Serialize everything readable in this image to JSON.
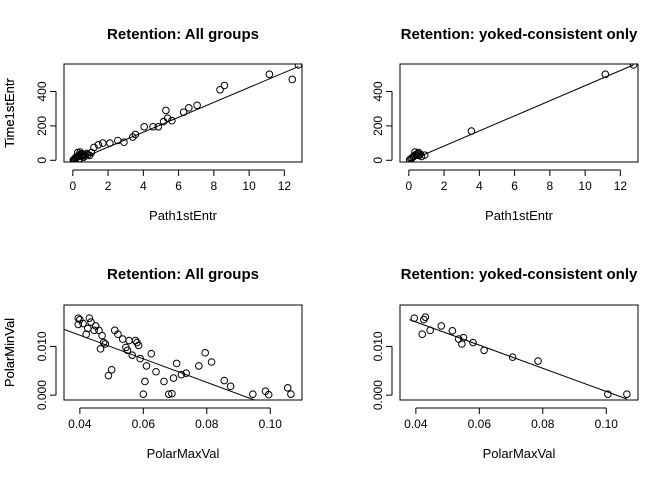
{
  "chart_data": [
    {
      "type": "scatter",
      "title": "Retention: All groups",
      "xlabel": "Path1stEntr",
      "ylabel": "Time1stEntr",
      "xlim": [
        -0.5,
        13.0
      ],
      "ylim": [
        -10,
        560
      ],
      "xticks": [
        0,
        2,
        4,
        6,
        8,
        10,
        12
      ],
      "xtick_labels": [
        "0",
        "2",
        "4",
        "6",
        "8",
        "10",
        "12"
      ],
      "yticks": [
        0,
        200,
        400
      ],
      "ytick_labels": [
        "0",
        "200",
        "400"
      ],
      "x": [
        0.03,
        0.08,
        0.12,
        0.18,
        0.22,
        0.27,
        0.31,
        0.35,
        0.41,
        0.47,
        0.52,
        0.58,
        0.63,
        0.7,
        0.78,
        0.85,
        0.95,
        1.05,
        0.15,
        0.25,
        0.38,
        0.5,
        0.62,
        0.42,
        0.28,
        1.2,
        1.45,
        1.7,
        2.1,
        2.55,
        2.9,
        3.4,
        3.55,
        4.05,
        4.55,
        4.85,
        5.15,
        5.28,
        5.38,
        5.62,
        6.28,
        6.58,
        7.05,
        8.35,
        8.6,
        11.15,
        12.45,
        12.8
      ],
      "y": [
        2,
        5,
        8,
        12,
        18,
        22,
        25,
        30,
        34,
        38,
        30,
        28,
        35,
        26,
        40,
        32,
        28,
        45,
        15,
        20,
        10,
        22,
        18,
        48,
        45,
        75,
        90,
        100,
        100,
        115,
        105,
        135,
        150,
        195,
        195,
        195,
        225,
        290,
        245,
        230,
        280,
        305,
        320,
        410,
        435,
        500,
        470,
        555
      ],
      "fit_line": {
        "x": [
          0,
          12.8
        ],
        "y": [
          -10,
          545
        ]
      },
      "grid": false,
      "legend": "none"
    },
    {
      "type": "scatter",
      "title": "Retention: yoked-consistent only",
      "xlabel": "Path1stEntr",
      "ylabel": "Time1stEntr",
      "xlim": [
        -0.5,
        13.0
      ],
      "ylim": [
        -10,
        560
      ],
      "xticks": [
        0,
        2,
        4,
        6,
        8,
        10,
        12
      ],
      "xtick_labels": [
        "0",
        "2",
        "4",
        "6",
        "8",
        "10",
        "12"
      ],
      "yticks": [
        0,
        200,
        400
      ],
      "ytick_labels": [
        "0",
        "200",
        "400"
      ],
      "x": [
        0.05,
        0.12,
        0.18,
        0.25,
        0.3,
        0.38,
        0.45,
        0.5,
        0.58,
        0.65,
        0.72,
        0.9,
        0.35,
        0.55,
        3.55,
        11.15,
        12.75
      ],
      "y": [
        3,
        8,
        14,
        20,
        25,
        32,
        30,
        38,
        28,
        35,
        22,
        30,
        48,
        45,
        170,
        500,
        555
      ],
      "fit_line": {
        "x": [
          0,
          12.75
        ],
        "y": [
          -5,
          555
        ]
      },
      "grid": false,
      "legend": "none"
    },
    {
      "type": "scatter",
      "title": "Retention: All groups",
      "xlabel": "PolarMaxVal",
      "ylabel": "PolarMinVal",
      "xlim": [
        0.035,
        0.11
      ],
      "ylim": [
        -0.001,
        0.0185
      ],
      "xticks": [
        0.04,
        0.06,
        0.08,
        0.1
      ],
      "xtick_labels": [
        "0.04",
        "0.06",
        "0.08",
        "0.10"
      ],
      "yticks": [
        0.0,
        0.01
      ],
      "ytick_labels": [
        "0.000",
        "0.010"
      ],
      "x": [
        0.0395,
        0.04,
        0.0395,
        0.041,
        0.0425,
        0.043,
        0.0435,
        0.042,
        0.0445,
        0.045,
        0.046,
        0.047,
        0.0475,
        0.0465,
        0.048,
        0.049,
        0.05,
        0.051,
        0.052,
        0.0535,
        0.0545,
        0.055,
        0.0555,
        0.0565,
        0.0575,
        0.058,
        0.0585,
        0.059,
        0.06,
        0.0605,
        0.061,
        0.0625,
        0.064,
        0.0665,
        0.068,
        0.069,
        0.0695,
        0.0705,
        0.072,
        0.0735,
        0.0775,
        0.0795,
        0.0815,
        0.0855,
        0.0875,
        0.0945,
        0.0985,
        0.0995,
        0.1055,
        0.1065
      ],
      "y": [
        0.0158,
        0.0155,
        0.0145,
        0.0147,
        0.0137,
        0.0158,
        0.015,
        0.0125,
        0.0133,
        0.0142,
        0.0133,
        0.0122,
        0.0108,
        0.0095,
        0.0105,
        0.004,
        0.0052,
        0.0133,
        0.0125,
        0.0115,
        0.0098,
        0.0092,
        0.0112,
        0.0082,
        0.0112,
        0.0108,
        0.0102,
        0.0075,
        0.0002,
        0.0028,
        0.006,
        0.0085,
        0.0048,
        0.0028,
        0.0002,
        0.0003,
        0.0035,
        0.0065,
        0.0042,
        0.0045,
        0.006,
        0.0087,
        0.0068,
        0.003,
        0.0018,
        0.0002,
        0.0008,
        0.0001,
        0.0015,
        0.0002
      ],
      "fit_line": {
        "x": [
          0.035,
          0.095
        ],
        "y": [
          0.0135,
          -0.001
        ]
      },
      "grid": false,
      "legend": "none"
    },
    {
      "type": "scatter",
      "title": "Retention: yoked-consistent only",
      "xlabel": "PolarMaxVal",
      "ylabel": "PolarMinVal",
      "xlim": [
        0.035,
        0.11
      ],
      "ylim": [
        -0.001,
        0.0185
      ],
      "xticks": [
        0.04,
        0.06,
        0.08,
        0.1
      ],
      "xtick_labels": [
        "0.04",
        "0.06",
        "0.08",
        "0.10"
      ],
      "yticks": [
        0.0,
        0.01
      ],
      "ytick_labels": [
        "0.000",
        "0.010"
      ],
      "x": [
        0.0395,
        0.0425,
        0.043,
        0.042,
        0.0445,
        0.048,
        0.0515,
        0.0535,
        0.0545,
        0.055,
        0.058,
        0.0615,
        0.0705,
        0.0785,
        0.1005,
        0.1065
      ],
      "y": [
        0.0158,
        0.0155,
        0.016,
        0.0125,
        0.0133,
        0.0142,
        0.0132,
        0.0115,
        0.0105,
        0.0118,
        0.0108,
        0.0092,
        0.0078,
        0.007,
        0.0002,
        0.0002
      ],
      "fit_line": {
        "x": [
          0.038,
          0.1065
        ],
        "y": [
          0.0155,
          -0.0008
        ]
      },
      "grid": false,
      "legend": "none"
    }
  ]
}
